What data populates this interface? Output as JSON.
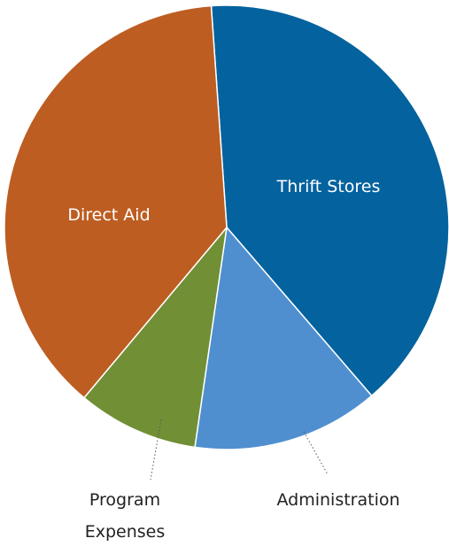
{
  "chart_data": {
    "type": "pie",
    "title": "",
    "slices": [
      {
        "label": "Thrift Stores",
        "value": 39.8,
        "color": "#04629e",
        "label_color": "#ffffff"
      },
      {
        "label": "Administration",
        "value": 13.6,
        "color": "#4f8fd0",
        "label_color": "#222222"
      },
      {
        "label": "Program Expenses",
        "value": 8.8,
        "color": "#718f35",
        "label_color": "#222222"
      },
      {
        "label": "Direct Aid",
        "value": 37.8,
        "color": "#bd5d21",
        "label_color": "#ffffff"
      }
    ],
    "legend": "none"
  },
  "labels": {
    "thrift_stores": "Thrift Stores",
    "direct_aid": "Direct Aid",
    "administration": "Administration",
    "program_line1": "Program",
    "program_line2": "Expenses"
  }
}
